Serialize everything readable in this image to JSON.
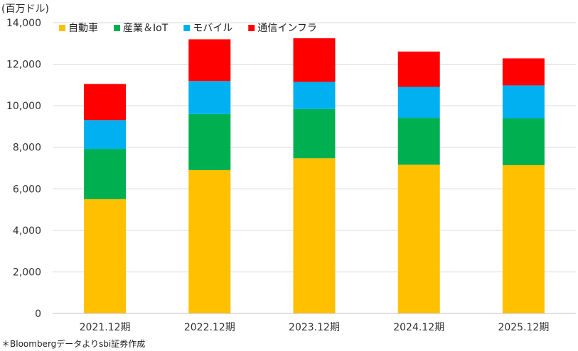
{
  "chart_data": {
    "type": "bar",
    "stacked": true,
    "unit_label": "(百万ドル)",
    "source_note": "＊Bloombergデータよりsbi証券作成",
    "categories": [
      "2021.12期",
      "2022.12期",
      "2023.12期",
      "2024.12期",
      "2025.12期"
    ],
    "series": [
      {
        "name": "自動車",
        "color": "#FFC000",
        "values": [
          5500,
          6900,
          7470,
          7160,
          7140
        ]
      },
      {
        "name": "産業＆IoT",
        "color": "#00B050",
        "values": [
          2420,
          2700,
          2370,
          2260,
          2250
        ]
      },
      {
        "name": "モバイル",
        "color": "#00B0F0",
        "values": [
          1390,
          1590,
          1310,
          1490,
          1590
        ]
      },
      {
        "name": "通信インフラ",
        "color": "#FF0000",
        "values": [
          1740,
          2010,
          2100,
          1700,
          1300
        ]
      }
    ],
    "ylim": [
      0,
      14000
    ],
    "yticks": [
      "0",
      "2,000",
      "4,000",
      "6,000",
      "8,000",
      "10,000",
      "12,000",
      "14,000"
    ],
    "grid": true,
    "legend": "top"
  }
}
